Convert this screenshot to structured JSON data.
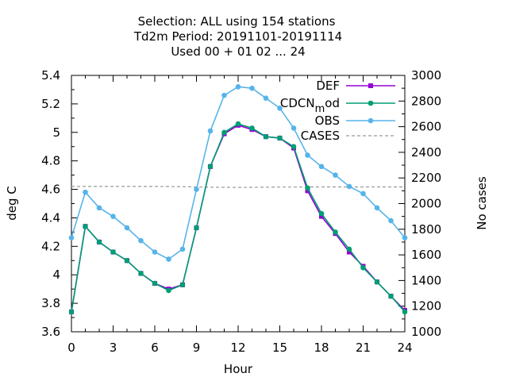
{
  "chart_data": {
    "type": "line",
    "title_lines": [
      "Selection: ALL using   154 stations",
      "Td2m   Period: 20191101-20191114",
      "Used  00 + 01 02 ... 24"
    ],
    "xlabel": "Hour",
    "ylabel": "deg C",
    "y2label": "No cases",
    "xlim": [
      0,
      24
    ],
    "ylim": [
      3.6,
      5.4
    ],
    "y2lim": [
      1000,
      3000
    ],
    "x_ticks": [
      0,
      3,
      6,
      9,
      12,
      15,
      18,
      21,
      24
    ],
    "y_ticks": [
      "3.6",
      "3.8",
      "4",
      "4.2",
      "4.4",
      "4.6",
      "4.8",
      "5",
      "5.2",
      "5.4"
    ],
    "y2_ticks": [
      "1000",
      "1200",
      "1400",
      "1600",
      "1800",
      "2000",
      "2200",
      "2400",
      "2600",
      "2800",
      "3000"
    ],
    "grid": false,
    "legend_position": "top-right",
    "x": [
      0,
      1,
      2,
      3,
      4,
      5,
      6,
      7,
      8,
      9,
      10,
      11,
      12,
      13,
      14,
      15,
      16,
      17,
      18,
      19,
      20,
      21,
      22,
      23,
      24
    ],
    "series": [
      {
        "name": "DEF",
        "color": "#9400d3",
        "marker": "square",
        "axis": "y",
        "values": [
          3.74,
          4.34,
          4.23,
          4.16,
          4.1,
          4.01,
          3.94,
          3.9,
          3.93,
          4.33,
          4.76,
          4.99,
          5.05,
          5.02,
          4.97,
          4.96,
          4.89,
          4.59,
          4.41,
          4.29,
          4.16,
          4.06,
          3.95,
          3.85,
          3.75
        ]
      },
      {
        "name": "CDCN_mod",
        "color": "#009e73",
        "marker": "circle",
        "axis": "y",
        "values": [
          3.74,
          4.34,
          4.23,
          4.16,
          4.1,
          4.01,
          3.94,
          3.89,
          3.93,
          4.33,
          4.76,
          5.0,
          5.06,
          5.03,
          4.97,
          4.96,
          4.9,
          4.61,
          4.43,
          4.3,
          4.18,
          4.05,
          3.95,
          3.85,
          3.74
        ]
      },
      {
        "name": "OBS",
        "color": "#56b4e9",
        "marker": "circle",
        "axis": "y",
        "values": [
          4.26,
          4.58,
          4.47,
          4.41,
          4.33,
          4.24,
          4.16,
          4.11,
          4.18,
          4.6,
          5.01,
          5.26,
          5.32,
          5.31,
          5.24,
          5.17,
          5.03,
          4.84,
          4.76,
          4.7,
          4.62,
          4.57,
          4.47,
          4.38,
          4.26
        ]
      },
      {
        "name": "CASES",
        "color": "#999999",
        "dashed": true,
        "axis": "y2",
        "values": [
          2134,
          2134,
          2134,
          2134,
          2134,
          2134,
          2134,
          2133,
          2132,
          2130,
          2128,
          2127,
          2126,
          2127,
          2128,
          2129,
          2129,
          2130,
          2130,
          2130,
          2130,
          2130,
          2130,
          2130,
          2130
        ]
      }
    ]
  }
}
